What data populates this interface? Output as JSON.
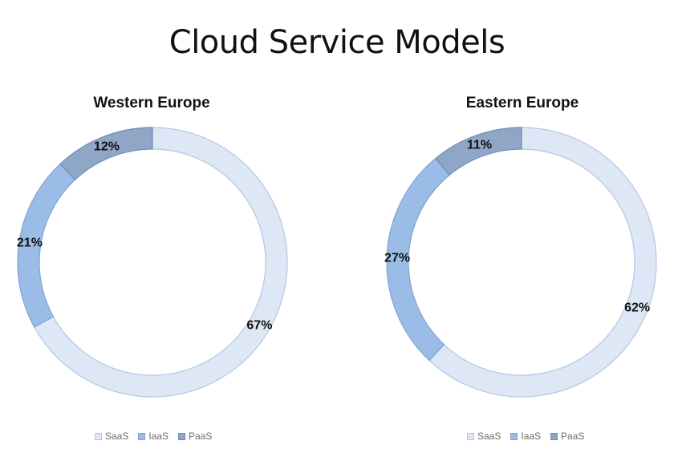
{
  "title": "Cloud Service Models",
  "colors": {
    "SaaS": "#dde7f5",
    "IaaS": "#9bbce6",
    "PaaS": "#8fa6c6",
    "SaaS_stroke": "#b3c7e3",
    "IaaS_stroke": "#7ea3d3",
    "PaaS_stroke": "#6f8fb8"
  },
  "chart_data": [
    {
      "type": "pie",
      "title": "Western Europe",
      "categories": [
        "SaaS",
        "IaaS",
        "PaaS"
      ],
      "values": [
        67,
        21,
        12
      ],
      "labels": [
        "67%",
        "21%",
        "12%"
      ],
      "legend": [
        "SaaS",
        "IaaS",
        "PaaS"
      ]
    },
    {
      "type": "pie",
      "title": "Eastern Europe",
      "categories": [
        "SaaS",
        "IaaS",
        "PaaS"
      ],
      "values": [
        62,
        27,
        11
      ],
      "labels": [
        "62%",
        "27%",
        "11%"
      ],
      "legend": [
        "SaaS",
        "IaaS",
        "PaaS"
      ]
    }
  ]
}
